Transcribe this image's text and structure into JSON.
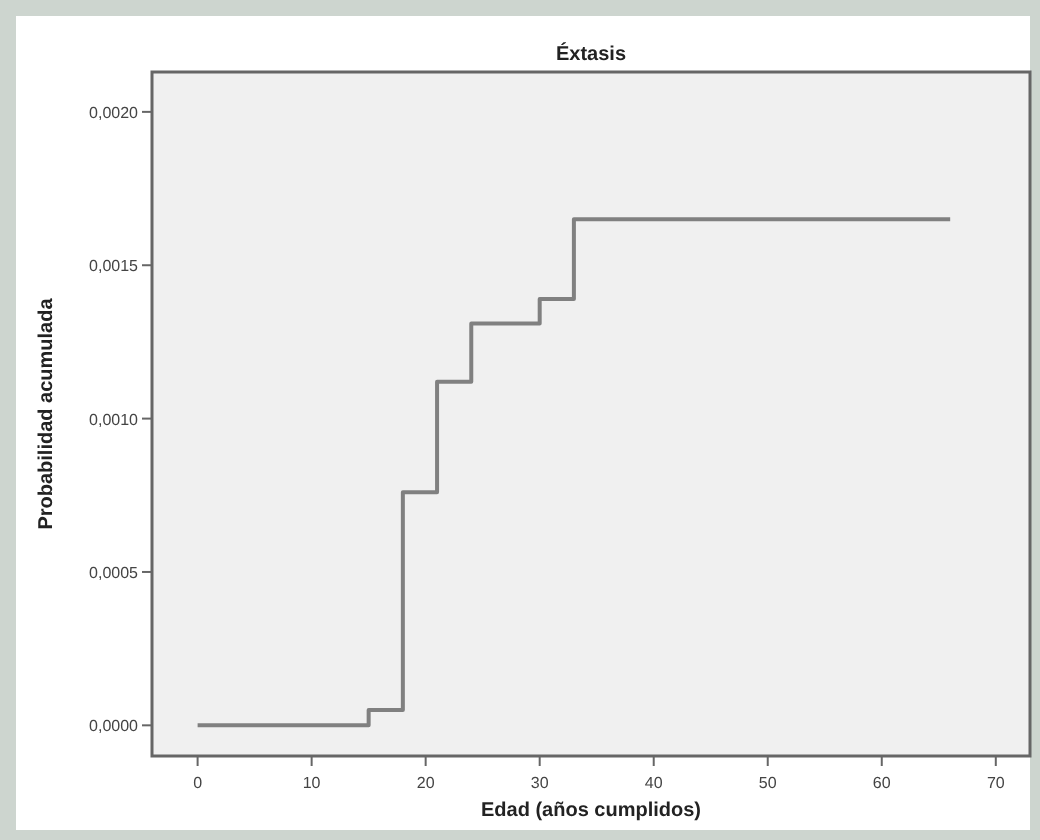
{
  "chart_data": {
    "type": "step",
    "title": "Éxtasis",
    "xlabel": "Edad (años cumplidos)",
    "ylabel": "Probabilidad acumulada",
    "x": [
      0,
      15,
      18,
      21,
      24,
      30,
      33,
      66
    ],
    "series": [
      {
        "color": "#808080",
        "values": [
          0,
          5e-05,
          0.00076,
          0.00112,
          0.00131,
          0.00139,
          0.00165,
          0.00165
        ]
      }
    ],
    "xlim": [
      -4,
      73
    ],
    "xticks": [
      0,
      10,
      20,
      30,
      40,
      50,
      60,
      70
    ],
    "ylim": [
      -0.0001,
      0.00213
    ],
    "yticks": [
      {
        "value": 0,
        "label": "0,0000"
      },
      {
        "value": 0.0005,
        "label": "0,0005"
      },
      {
        "value": 0.001,
        "label": "0,0010"
      },
      {
        "value": 0.0015,
        "label": "0,0015"
      },
      {
        "value": 0.002,
        "label": "0,0020"
      }
    ],
    "grid": false
  }
}
